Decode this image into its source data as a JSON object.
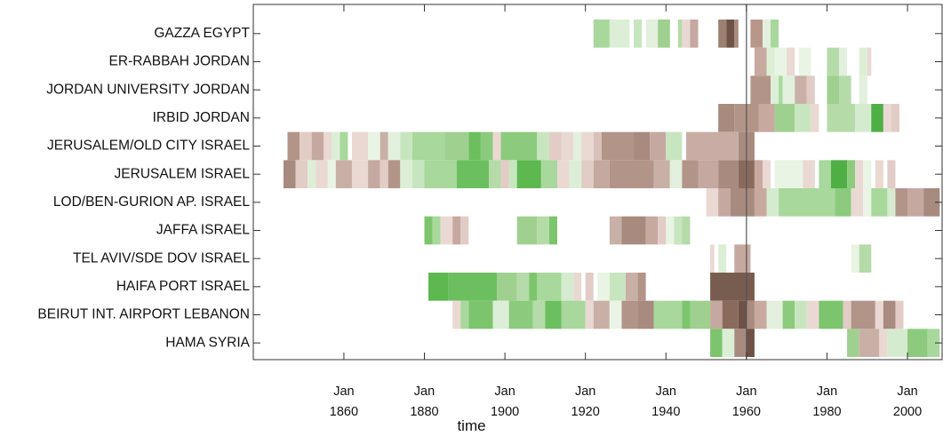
{
  "chart_data": {
    "type": "timeline",
    "xlabel": "time",
    "xlim": [
      1837.5,
      2008.6
    ],
    "xticks": [
      {
        "value": 1860,
        "label": "Jan 1860"
      },
      {
        "value": 1880,
        "label": "Jan 1880"
      },
      {
        "value": 1900,
        "label": "Jan 1900"
      },
      {
        "value": 1920,
        "label": "Jan 1920"
      },
      {
        "value": 1940,
        "label": "Jan 1940"
      },
      {
        "value": 1960,
        "label": "Jan 1960"
      },
      {
        "value": 1980,
        "label": "Jan 1980"
      },
      {
        "value": 2000,
        "label": "Jan 2000"
      }
    ],
    "vline": 1960,
    "rows": [
      {
        "name": "GAZZA EGYPT",
        "segments": [
          [
            1922,
            1926,
            "#a8d89c"
          ],
          [
            1926,
            1931,
            "#dcefd6"
          ],
          [
            1932,
            1934,
            "#c7e6bf"
          ],
          [
            1935,
            1938,
            "#e2f0dd"
          ],
          [
            1938,
            1941,
            "#9fd08f"
          ],
          [
            1943,
            1944,
            "#b5dba9"
          ],
          [
            1944,
            1946,
            "#ead8d3"
          ],
          [
            1946,
            1948,
            "#c5a89f"
          ],
          [
            1953,
            1955,
            "#9e8073"
          ],
          [
            1955,
            1957,
            "#6e5246"
          ],
          [
            1957,
            1958,
            "#a88a7e"
          ],
          [
            1961,
            1964,
            "#b8968a"
          ],
          [
            1964,
            1966,
            "#e2f0dd"
          ],
          [
            1966,
            1968,
            "#a8d89c"
          ]
        ]
      },
      {
        "name": "ER-RABBAH JORDAN",
        "segments": [
          [
            1962,
            1965,
            "#c8a99f"
          ],
          [
            1965,
            1967,
            "#dcefd6"
          ],
          [
            1967,
            1970,
            "#e9f4e4"
          ],
          [
            1970,
            1972,
            "#ead8d3"
          ],
          [
            1973,
            1976,
            "#e9f4e4"
          ],
          [
            1980,
            1983,
            "#b5dba9"
          ],
          [
            1983,
            1985,
            "#e2f0dd"
          ],
          [
            1988,
            1990,
            "#dcefd6"
          ],
          [
            1990,
            1991,
            "#ead8d3"
          ]
        ]
      },
      {
        "name": "JORDAN UNIVERSITY JORDAN",
        "segments": [
          [
            1961,
            1966,
            "#b39488"
          ],
          [
            1966,
            1968,
            "#dcefd6"
          ],
          [
            1968,
            1969,
            "#a8d89c"
          ],
          [
            1969,
            1972,
            "#e2f0dd"
          ],
          [
            1972,
            1975,
            "#c9b0a7"
          ],
          [
            1975,
            1977,
            "#e2ccc6"
          ],
          [
            1980,
            1983,
            "#9fd08f"
          ],
          [
            1983,
            1986,
            "#b5dba9"
          ],
          [
            1988,
            1990,
            "#e2f0dd"
          ]
        ]
      },
      {
        "name": "IRBID JORDAN",
        "segments": [
          [
            1953,
            1957,
            "#a88a7e"
          ],
          [
            1957,
            1963,
            "#b39488"
          ],
          [
            1963,
            1967,
            "#c8a99f"
          ],
          [
            1967,
            1972,
            "#9fd08f"
          ],
          [
            1972,
            1976,
            "#c7e6bf"
          ],
          [
            1976,
            1978,
            "#ead8d3"
          ],
          [
            1980,
            1987,
            "#b5dba9"
          ],
          [
            1987,
            1991,
            "#d5ebd0"
          ],
          [
            1991,
            1994,
            "#4faf45"
          ],
          [
            1994,
            1996,
            "#ead8d3"
          ],
          [
            1996,
            1998,
            "#e2ccc6"
          ]
        ]
      },
      {
        "name": "JERUSALEM/OLD CITY ISRAEL",
        "segments": [
          [
            1846,
            1849,
            "#b39488"
          ],
          [
            1849,
            1852,
            "#e2ccc6"
          ],
          [
            1852,
            1855,
            "#c5a89f"
          ],
          [
            1855,
            1857,
            "#ead8d3"
          ],
          [
            1857,
            1859,
            "#dcefd6"
          ],
          [
            1859,
            1861,
            "#a8d89c"
          ],
          [
            1862,
            1866,
            "#ead8d3"
          ],
          [
            1866,
            1869,
            "#e9f4e4"
          ],
          [
            1869,
            1871,
            "#c9b0a7"
          ],
          [
            1871,
            1874,
            "#e2f0dd"
          ],
          [
            1874,
            1877,
            "#c7e6bf"
          ],
          [
            1877,
            1885,
            "#a8d89c"
          ],
          [
            1885,
            1891,
            "#9fd08f"
          ],
          [
            1891,
            1894,
            "#6cbf5f"
          ],
          [
            1894,
            1897,
            "#8ccb7d"
          ],
          [
            1897,
            1899,
            "#ead8d3"
          ],
          [
            1899,
            1908,
            "#8ccb7d"
          ],
          [
            1908,
            1911,
            "#c7e6bf"
          ],
          [
            1911,
            1914,
            "#e2ccc6"
          ],
          [
            1914,
            1917,
            "#ead8d3"
          ],
          [
            1917,
            1919,
            "#e2f0dd"
          ],
          [
            1919,
            1922,
            "#ead8d3"
          ],
          [
            1922,
            1924,
            "#d8c2bb"
          ],
          [
            1924,
            1932,
            "#b39488"
          ],
          [
            1932,
            1936,
            "#a88a7e"
          ],
          [
            1936,
            1940,
            "#c5a89f"
          ],
          [
            1940,
            1944,
            "#c7e6bf"
          ],
          [
            1945,
            1958,
            "#c9ada4"
          ],
          [
            1958,
            1962,
            "#a88a7e"
          ]
        ]
      },
      {
        "name": "JERUSALEM ISRAEL",
        "segments": [
          [
            1845,
            1848,
            "#a88a7e"
          ],
          [
            1848,
            1851,
            "#e2ccc6"
          ],
          [
            1851,
            1853,
            "#dcefd6"
          ],
          [
            1853,
            1856,
            "#ead8d3"
          ],
          [
            1856,
            1858,
            "#e9f4e4"
          ],
          [
            1858,
            1862,
            "#c9b0a7"
          ],
          [
            1862,
            1866,
            "#ead8d3"
          ],
          [
            1866,
            1869,
            "#c5a89f"
          ],
          [
            1869,
            1871,
            "#e2ccc6"
          ],
          [
            1871,
            1874,
            "#b39488"
          ],
          [
            1874,
            1877,
            "#dcefd6"
          ],
          [
            1877,
            1880,
            "#c7e6bf"
          ],
          [
            1880,
            1888,
            "#a8d89c"
          ],
          [
            1888,
            1896,
            "#6cbf5f"
          ],
          [
            1896,
            1899,
            "#b5dba9"
          ],
          [
            1899,
            1901,
            "#e2ccc6"
          ],
          [
            1901,
            1903,
            "#c7e6bf"
          ],
          [
            1903,
            1909,
            "#5cb84f"
          ],
          [
            1909,
            1913,
            "#a8d89c"
          ],
          [
            1913,
            1916,
            "#ead8d3"
          ],
          [
            1916,
            1919,
            "#dcefd6"
          ],
          [
            1919,
            1922,
            "#e2ccc6"
          ],
          [
            1922,
            1926,
            "#c5a89f"
          ],
          [
            1926,
            1937,
            "#b39488"
          ],
          [
            1937,
            1941,
            "#c9b0a7"
          ],
          [
            1941,
            1944,
            "#e2f0dd"
          ],
          [
            1944,
            1948,
            "#b39488"
          ],
          [
            1948,
            1953,
            "#c5a89f"
          ],
          [
            1953,
            1958,
            "#a88a7e"
          ],
          [
            1958,
            1962,
            "#8b6a5e"
          ],
          [
            1962,
            1964,
            "#c8a99f"
          ],
          [
            1964,
            1966,
            "#ead8d3"
          ],
          [
            1967,
            1974,
            "#e9f4e4"
          ],
          [
            1974,
            1977,
            "#ead8d3"
          ],
          [
            1978,
            1981,
            "#a8d89c"
          ],
          [
            1981,
            1985,
            "#4faf45"
          ],
          [
            1985,
            1987,
            "#8ccb7d"
          ],
          [
            1987,
            1989,
            "#ead8d3"
          ],
          [
            1989,
            1991,
            "#e9f4e4"
          ],
          [
            1992,
            1994,
            "#ead8d3"
          ],
          [
            1995,
            1997,
            "#e2ccc6"
          ]
        ]
      },
      {
        "name": "LOD/BEN-GURION AP. ISRAEL",
        "segments": [
          [
            1950,
            1953,
            "#ead8d3"
          ],
          [
            1953,
            1956,
            "#c5a89f"
          ],
          [
            1956,
            1962,
            "#a88a7e"
          ],
          [
            1962,
            1965,
            "#c8a99f"
          ],
          [
            1965,
            1968,
            "#d5ebd0"
          ],
          [
            1968,
            1982,
            "#a8d89c"
          ],
          [
            1982,
            1986,
            "#8ccb7d"
          ],
          [
            1986,
            1989,
            "#ead8d3"
          ],
          [
            1989,
            1991,
            "#e9f4e4"
          ],
          [
            1991,
            1995,
            "#a8d89c"
          ],
          [
            1995,
            1997,
            "#d5ebd0"
          ],
          [
            1997,
            2000,
            "#b39488"
          ],
          [
            2000,
            2004,
            "#c5a89f"
          ],
          [
            2004,
            2008,
            "#a88a7e"
          ]
        ]
      },
      {
        "name": "JAFFA ISRAEL",
        "segments": [
          [
            1880,
            1882,
            "#7cc56d"
          ],
          [
            1882,
            1884,
            "#a8d89c"
          ],
          [
            1884,
            1887,
            "#ead8d3"
          ],
          [
            1887,
            1889,
            "#c5a89f"
          ],
          [
            1889,
            1891,
            "#e2ccc6"
          ],
          [
            1903,
            1908,
            "#9fd08f"
          ],
          [
            1908,
            1911,
            "#b5dba9"
          ],
          [
            1911,
            1913,
            "#7cc56d"
          ],
          [
            1926,
            1929,
            "#c9b0a7"
          ],
          [
            1929,
            1935,
            "#a88a7e"
          ],
          [
            1935,
            1938,
            "#c8a99f"
          ],
          [
            1938,
            1940,
            "#e2ccc6"
          ],
          [
            1940,
            1942,
            "#e9f4e4"
          ],
          [
            1942,
            1944,
            "#c7e6bf"
          ],
          [
            1944,
            1946,
            "#b5dba9"
          ]
        ]
      },
      {
        "name": "TEL AVIV/SDE DOV ISRAEL",
        "segments": [
          [
            1951,
            1952,
            "#ead8d3"
          ],
          [
            1953,
            1955,
            "#dcefd6"
          ],
          [
            1957,
            1961,
            "#c5a89f"
          ],
          [
            1986,
            1988,
            "#e9f4e4"
          ],
          [
            1988,
            1991,
            "#b5dba9"
          ]
        ]
      },
      {
        "name": "HAIFA PORT ISRAEL",
        "segments": [
          [
            1881,
            1886,
            "#5cb84f"
          ],
          [
            1886,
            1898,
            "#6cbf5f"
          ],
          [
            1898,
            1903,
            "#9fd08f"
          ],
          [
            1903,
            1906,
            "#b5dba9"
          ],
          [
            1906,
            1908,
            "#7cc56d"
          ],
          [
            1908,
            1914,
            "#a8d89c"
          ],
          [
            1914,
            1917,
            "#d5ebd0"
          ],
          [
            1917,
            1919,
            "#ead8d3"
          ],
          [
            1920,
            1922,
            "#e2ccc6"
          ],
          [
            1923,
            1926,
            "#e9f4e4"
          ],
          [
            1926,
            1930,
            "#c7e6bf"
          ],
          [
            1930,
            1933,
            "#c9b0a7"
          ],
          [
            1933,
            1935,
            "#b39488"
          ],
          [
            1951,
            1962,
            "#785c50"
          ]
        ]
      },
      {
        "name": "BEIRUT INT. AIRPORT LEBANON",
        "segments": [
          [
            1887,
            1889,
            "#ead8d3"
          ],
          [
            1889,
            1891,
            "#a8d89c"
          ],
          [
            1891,
            1897,
            "#7cc56d"
          ],
          [
            1897,
            1901,
            "#dcefd6"
          ],
          [
            1901,
            1907,
            "#8ccb7d"
          ],
          [
            1907,
            1910,
            "#b5dba9"
          ],
          [
            1910,
            1914,
            "#6cbf5f"
          ],
          [
            1914,
            1920,
            "#a8d89c"
          ],
          [
            1920,
            1922,
            "#ead8d3"
          ],
          [
            1922,
            1926,
            "#c9b0a7"
          ],
          [
            1926,
            1929,
            "#e9f4e4"
          ],
          [
            1929,
            1933,
            "#b39488"
          ],
          [
            1933,
            1937,
            "#a88a7e"
          ],
          [
            1937,
            1944,
            "#a8d89c"
          ],
          [
            1944,
            1946,
            "#7cc56d"
          ],
          [
            1946,
            1951,
            "#9fd08f"
          ],
          [
            1951,
            1954,
            "#c5a89f"
          ],
          [
            1954,
            1958,
            "#8b6a5e"
          ],
          [
            1958,
            1960,
            "#6e5246"
          ],
          [
            1960,
            1962,
            "#a88a7e"
          ],
          [
            1962,
            1965,
            "#c8a99f"
          ],
          [
            1965,
            1969,
            "#e2f0dd"
          ],
          [
            1969,
            1972,
            "#8ccb7d"
          ],
          [
            1972,
            1975,
            "#c7e6bf"
          ],
          [
            1975,
            1978,
            "#ead8d3"
          ],
          [
            1978,
            1984,
            "#7cc56d"
          ],
          [
            1984,
            1986,
            "#e2ccc6"
          ],
          [
            1986,
            1992,
            "#b39488"
          ],
          [
            1992,
            1994,
            "#ead8d3"
          ],
          [
            1994,
            1997,
            "#a88a7e"
          ],
          [
            1997,
            1999,
            "#e2ccc6"
          ]
        ]
      },
      {
        "name": "HAMA SYRIA",
        "segments": [
          [
            1951,
            1954,
            "#7cc56d"
          ],
          [
            1954,
            1957,
            "#dcefd6"
          ],
          [
            1957,
            1960,
            "#a88a7e"
          ],
          [
            1960,
            1962,
            "#6e5246"
          ],
          [
            1985,
            1988,
            "#9fd08f"
          ],
          [
            1988,
            1993,
            "#c9b0a7"
          ],
          [
            1993,
            1995,
            "#ead8d3"
          ],
          [
            1995,
            2000,
            "#d5ebd0"
          ],
          [
            2000,
            2005,
            "#8ccb7d"
          ],
          [
            2005,
            2008,
            "#a8d89c"
          ]
        ]
      }
    ]
  }
}
